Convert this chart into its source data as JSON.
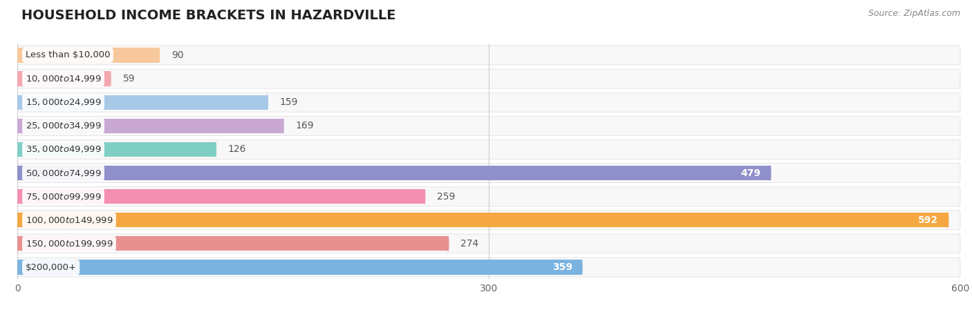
{
  "title": "HOUSEHOLD INCOME BRACKETS IN HAZARDVILLE",
  "source": "Source: ZipAtlas.com",
  "categories": [
    "Less than $10,000",
    "$10,000 to $14,999",
    "$15,000 to $24,999",
    "$25,000 to $34,999",
    "$35,000 to $49,999",
    "$50,000 to $74,999",
    "$75,000 to $99,999",
    "$100,000 to $149,999",
    "$150,000 to $199,999",
    "$200,000+"
  ],
  "values": [
    90,
    59,
    159,
    169,
    126,
    479,
    259,
    592,
    274,
    359
  ],
  "bar_colors": [
    "#f7c89b",
    "#f4a7b0",
    "#a8c8e8",
    "#c9a8d4",
    "#7ecec4",
    "#9090cc",
    "#f48fb1",
    "#f5a742",
    "#e89090",
    "#7ab3e0"
  ],
  "xlim": [
    0,
    600
  ],
  "xticks": [
    0,
    300,
    600
  ],
  "bar_height": 0.62,
  "row_bg_color": "#f0f0f0",
  "row_bg_color2": "#e8e8e8",
  "panel_color": "#f7f7f7",
  "label_color_inside": "#ffffff",
  "label_color_outside": "#555555",
  "title_fontsize": 14,
  "source_fontsize": 9,
  "label_fontsize": 10,
  "tick_fontsize": 10,
  "category_fontsize": 9.5
}
